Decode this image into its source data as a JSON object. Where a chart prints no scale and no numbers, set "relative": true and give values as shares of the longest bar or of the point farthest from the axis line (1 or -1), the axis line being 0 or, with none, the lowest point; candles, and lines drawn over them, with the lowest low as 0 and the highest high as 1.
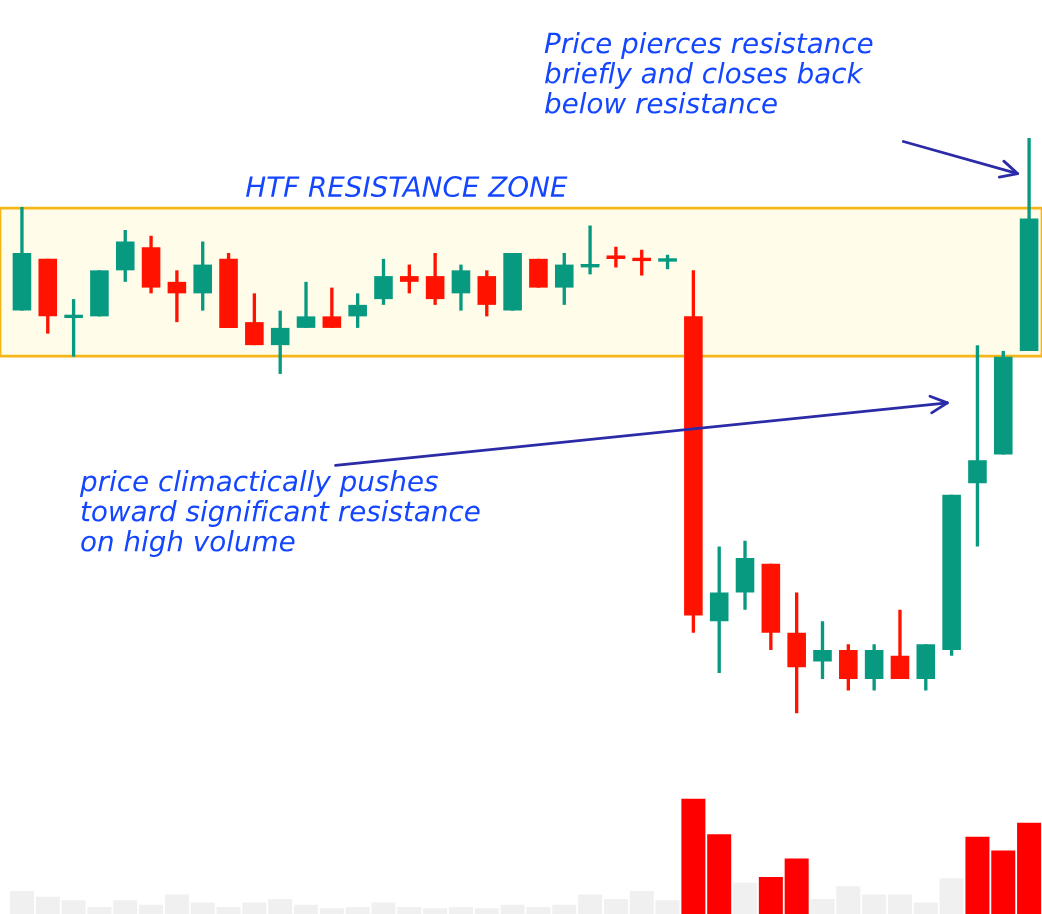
{
  "chart_data": [
    {
      "type": "candlestick",
      "relative": true,
      "categories": [
        null,
        null,
        null,
        null,
        null,
        null,
        null,
        null,
        null,
        null,
        null,
        null,
        null,
        null,
        null,
        null,
        null,
        null,
        null,
        null,
        null,
        null,
        null,
        null,
        null,
        null,
        null,
        null,
        null,
        null,
        null,
        null,
        null,
        null,
        null,
        null,
        null,
        null,
        null,
        null
      ],
      "ohlc": [
        [
          0.7,
          0.88,
          0.7,
          0.8
        ],
        [
          0.79,
          0.79,
          0.66,
          0.69
        ],
        [
          0.69,
          0.72,
          0.62,
          0.69
        ],
        [
          0.69,
          0.77,
          0.69,
          0.77
        ],
        [
          0.77,
          0.84,
          0.75,
          0.82
        ],
        [
          0.81,
          0.83,
          0.73,
          0.74
        ],
        [
          0.75,
          0.77,
          0.68,
          0.73
        ],
        [
          0.73,
          0.82,
          0.7,
          0.78
        ],
        [
          0.79,
          0.8,
          0.67,
          0.67
        ],
        [
          0.68,
          0.73,
          0.64,
          0.64
        ],
        [
          0.64,
          0.7,
          0.59,
          0.67
        ],
        [
          0.67,
          0.75,
          0.67,
          0.69
        ],
        [
          0.69,
          0.74,
          0.67,
          0.67
        ],
        [
          0.69,
          0.73,
          0.67,
          0.71
        ],
        [
          0.72,
          0.79,
          0.71,
          0.76
        ],
        [
          0.76,
          0.78,
          0.73,
          0.75
        ],
        [
          0.76,
          0.8,
          0.71,
          0.72
        ],
        [
          0.73,
          0.78,
          0.7,
          0.77
        ],
        [
          0.76,
          0.77,
          0.69,
          0.71
        ],
        [
          0.7,
          0.8,
          0.7,
          0.8
        ],
        [
          0.79,
          0.79,
          0.74,
          0.74
        ],
        [
          0.74,
          0.8,
          0.71,
          0.78
        ],
        [
          0.778,
          0.848,
          0.763,
          0.781
        ],
        [
          0.793,
          0.811,
          0.775,
          0.79
        ],
        [
          0.789,
          0.806,
          0.761,
          0.787
        ],
        [
          0.788,
          0.797,
          0.772,
          0.79
        ],
        [
          0.69,
          0.77,
          0.14,
          0.17
        ],
        [
          0.16,
          0.29,
          0.07,
          0.21
        ],
        [
          0.21,
          0.3,
          0.18,
          0.27
        ],
        [
          0.26,
          0.26,
          0.11,
          0.14
        ],
        [
          0.14,
          0.21,
          0,
          0.08
        ],
        [
          0.09,
          0.16,
          0.06,
          0.11
        ],
        [
          0.11,
          0.12,
          0.04,
          0.06
        ],
        [
          0.06,
          0.12,
          0.04,
          0.11
        ],
        [
          0.1,
          0.18,
          0.06,
          0.06
        ],
        [
          0.06,
          0.12,
          0.04,
          0.12
        ],
        [
          0.11,
          0.38,
          0.1,
          0.38
        ],
        [
          0.4,
          0.64,
          0.29,
          0.44
        ],
        [
          0.45,
          0.63,
          0.45,
          0.62
        ],
        [
          0.63,
          1,
          0.63,
          0.86
        ]
      ],
      "bands": [
        {
          "axis": "y",
          "from": 0.621,
          "to": 0.878,
          "label": "HTF RESISTANCE ZONE",
          "color": "#fffdea"
        }
      ],
      "annotations": [
        "Price pierces resistance\nbriefly and closes back\nbelow resistance",
        "price climactically pushes\ntoward significant resistance\non high volume"
      ]
    },
    {
      "type": "bar",
      "relative": true,
      "categories": [
        null,
        null,
        null,
        null,
        null,
        null,
        null,
        null,
        null,
        null,
        null,
        null,
        null,
        null,
        null,
        null,
        null,
        null,
        null,
        null,
        null,
        null,
        null,
        null,
        null,
        null,
        null,
        null,
        null,
        null,
        null,
        null,
        null,
        null,
        null,
        null,
        null,
        null,
        null,
        null
      ],
      "values": [
        0.2,
        0.15,
        0.12,
        0.06,
        0.12,
        0.08,
        0.17,
        0.1,
        0.06,
        0.1,
        0.13,
        0.08,
        0.05,
        0.06,
        0.1,
        0.06,
        0.05,
        0.06,
        0.05,
        0.08,
        0.06,
        0.08,
        0.17,
        0.13,
        0.2,
        0.12,
        1,
        0.69,
        0.27,
        0.32,
        0.48,
        0.13,
        0.24,
        0.17,
        0.17,
        0.1,
        0.31,
        0.67,
        0.55,
        0.79
      ],
      "colors": [
        "#f0f0f0",
        "#f0f0f0",
        "#f0f0f0",
        "#f0f0f0",
        "#f0f0f0",
        "#f0f0f0",
        "#f0f0f0",
        "#f0f0f0",
        "#f0f0f0",
        "#f0f0f0",
        "#f0f0f0",
        "#f0f0f0",
        "#f0f0f0",
        "#f0f0f0",
        "#f0f0f0",
        "#f0f0f0",
        "#f0f0f0",
        "#f0f0f0",
        "#f0f0f0",
        "#f0f0f0",
        "#f0f0f0",
        "#f0f0f0",
        "#f0f0f0",
        "#f0f0f0",
        "#f0f0f0",
        "#f0f0f0",
        "#ff0000",
        "#ff0000",
        "#f0f0f0",
        "#ff0000",
        "#ff0000",
        "#f0f0f0",
        "#f0f0f0",
        "#f0f0f0",
        "#f0f0f0",
        "#f0f0f0",
        "#f0f0f0",
        "#ff0000",
        "#ff0000",
        "#ff0000"
      ]
    }
  ]
}
